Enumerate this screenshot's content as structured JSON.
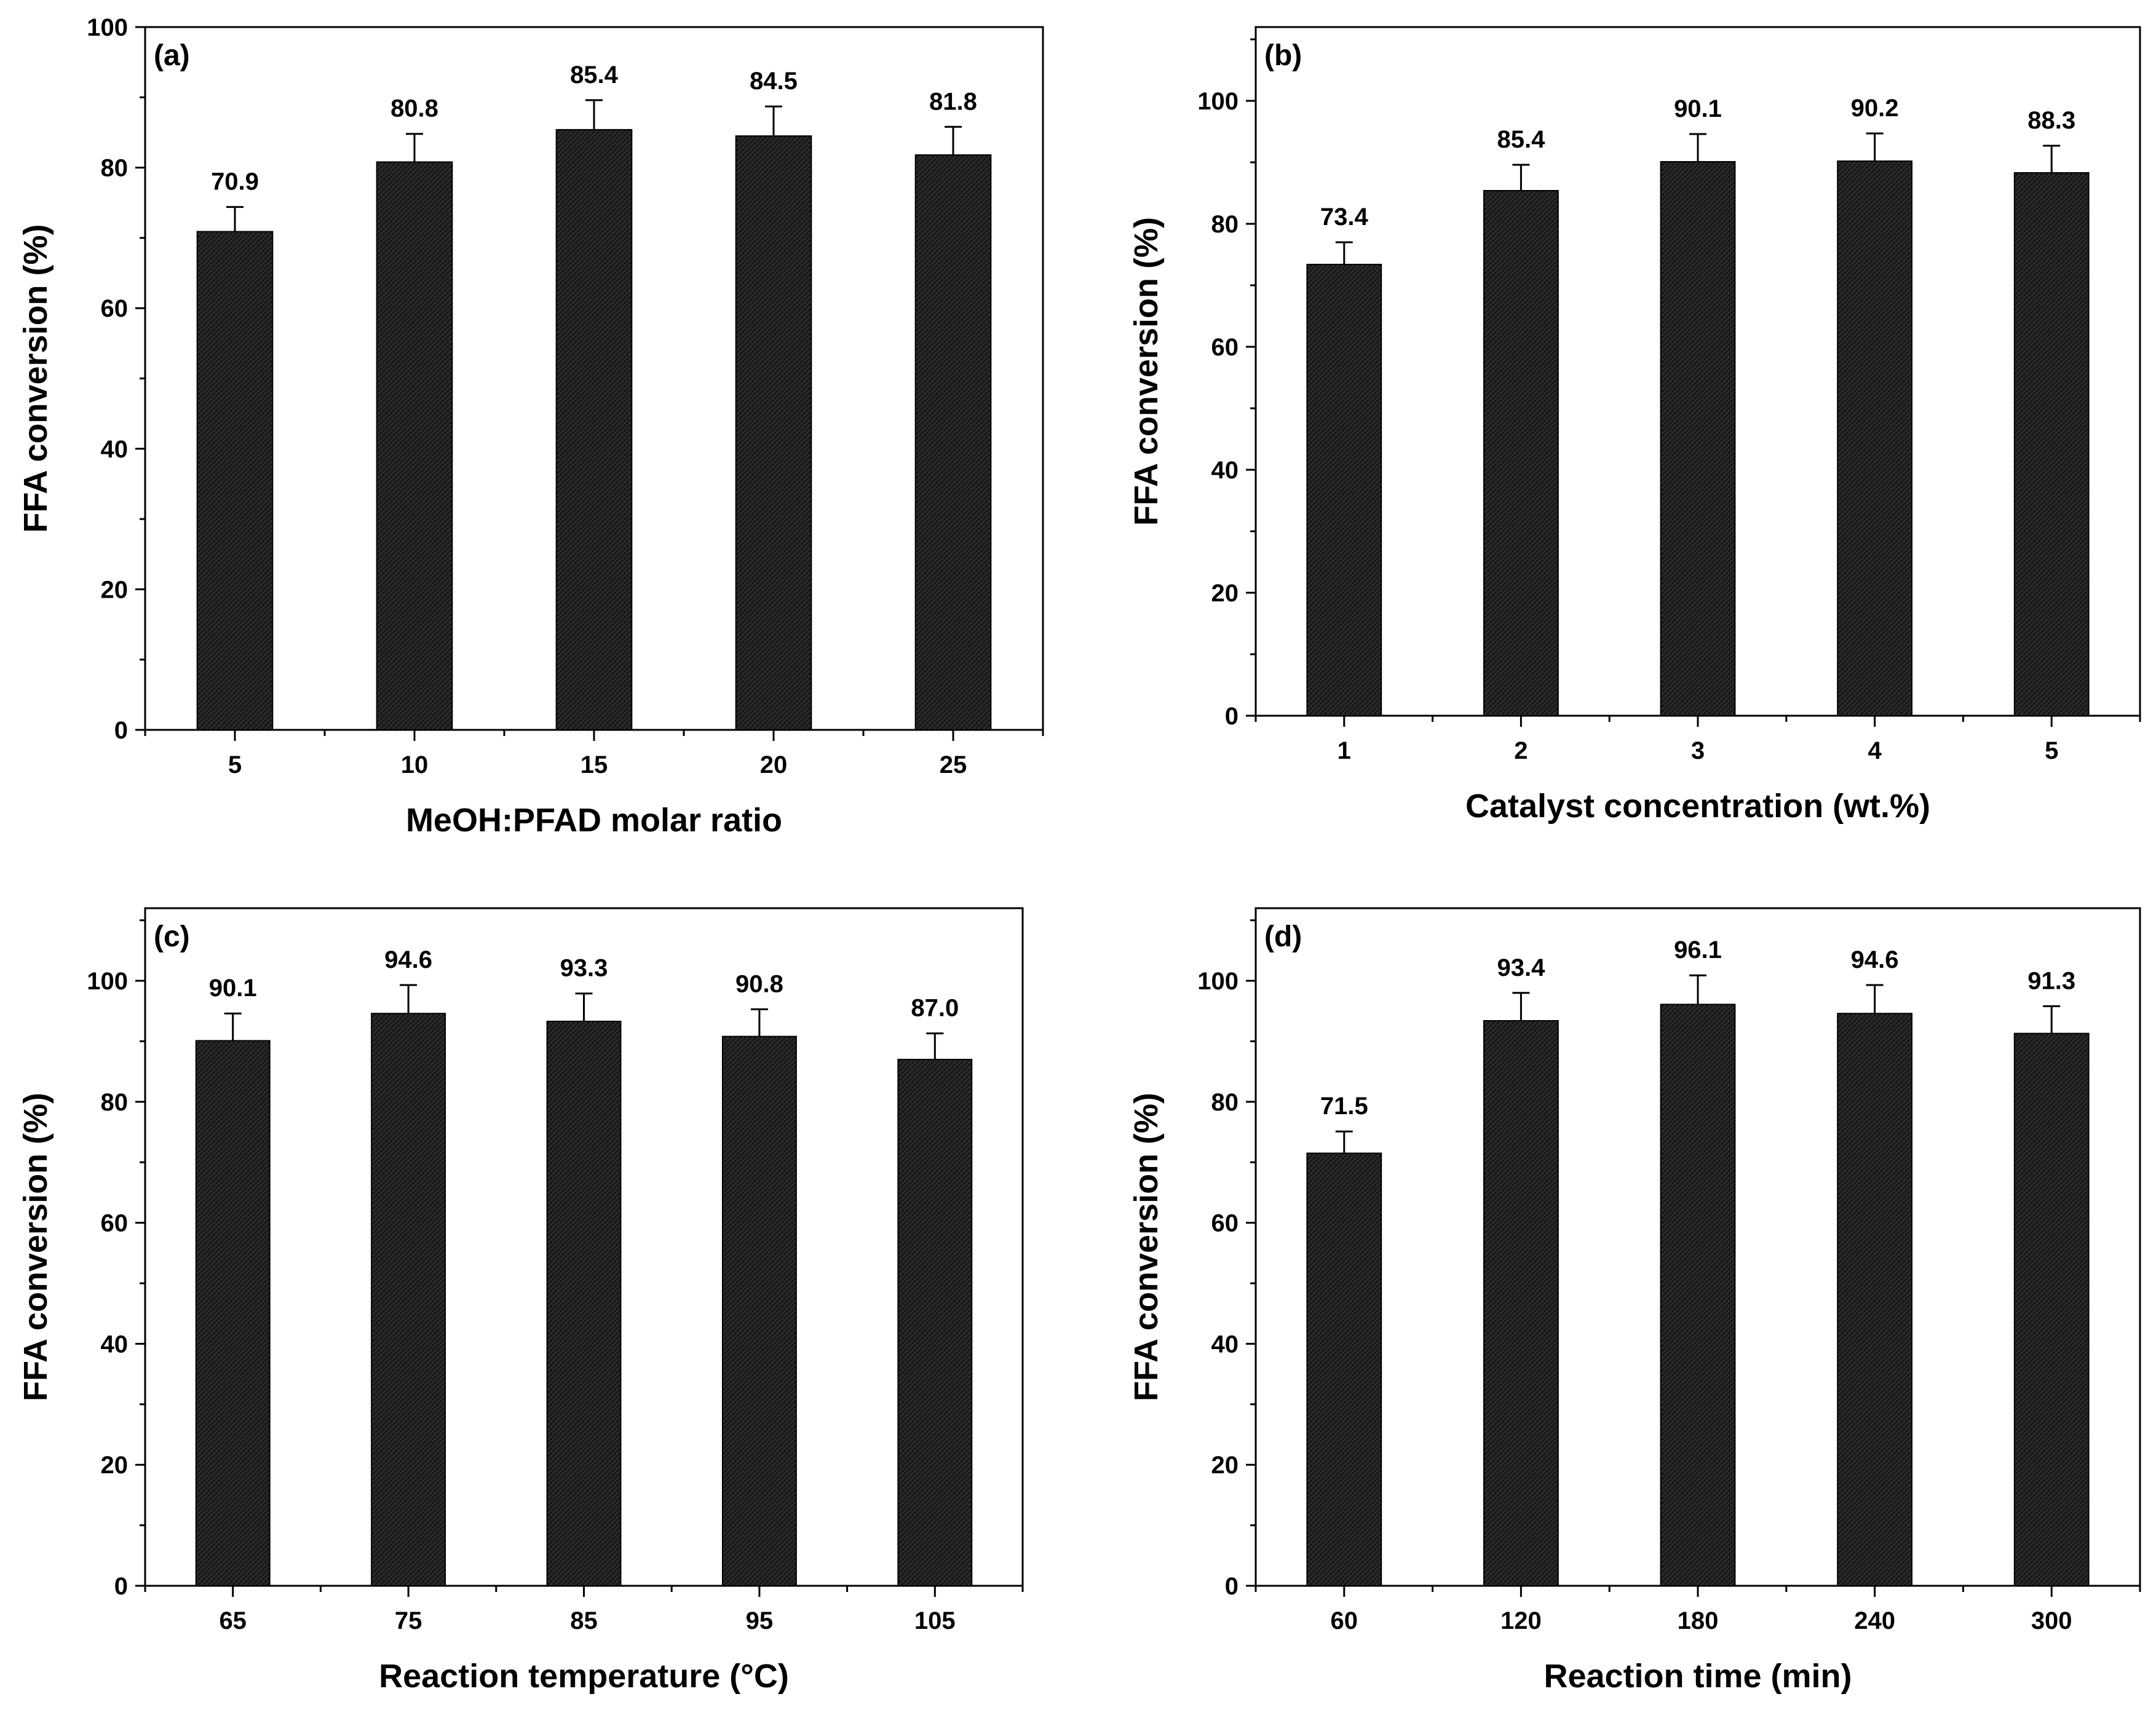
{
  "figure": {
    "background": "#ffffff",
    "bar_color": "#1a1a1a",
    "axis_color": "#000000"
  },
  "chart_data": [
    {
      "type": "bar",
      "panel": "(a)",
      "categories": [
        "5",
        "10",
        "15",
        "20",
        "25"
      ],
      "values": [
        70.9,
        80.8,
        85.4,
        84.5,
        81.8
      ],
      "error": [
        3.5,
        4.0,
        4.2,
        4.2,
        4.0
      ],
      "data_labels": [
        "70.9",
        "80.8",
        "85.4",
        "84.5",
        "81.8"
      ],
      "xlabel": "MeOH:PFAD molar ratio",
      "ylabel": "FFA conversion (%)",
      "ylim": [
        0,
        100
      ],
      "yticks": [
        "0",
        "20",
        "40",
        "60",
        "80",
        "100"
      ],
      "grid": false
    },
    {
      "type": "bar",
      "panel": "(b)",
      "categories": [
        "1",
        "2",
        "3",
        "4",
        "5"
      ],
      "values": [
        73.4,
        85.4,
        90.1,
        90.2,
        88.3
      ],
      "error": [
        3.6,
        4.2,
        4.5,
        4.5,
        4.4
      ],
      "data_labels": [
        "73.4",
        "85.4",
        "90.1",
        "90.2",
        "88.3"
      ],
      "xlabel": "Catalyst concentration (wt.%)",
      "ylabel": "FFA conversion (%)",
      "ylim": [
        0,
        112
      ],
      "yticks": [
        "0",
        "20",
        "40",
        "60",
        "80",
        "100"
      ],
      "grid": false
    },
    {
      "type": "bar",
      "panel": "(c)",
      "categories": [
        "65",
        "75",
        "85",
        "95",
        "105"
      ],
      "values": [
        90.1,
        94.6,
        93.3,
        90.8,
        87.0
      ],
      "error": [
        4.5,
        4.7,
        4.6,
        4.5,
        4.3
      ],
      "data_labels": [
        "90.1",
        "94.6",
        "93.3",
        "90.8",
        "87.0"
      ],
      "xlabel": "Reaction temperature (°C)",
      "ylabel": "FFA conversion (%)",
      "ylim": [
        0,
        112
      ],
      "yticks": [
        "0",
        "20",
        "40",
        "60",
        "80",
        "100"
      ],
      "grid": false
    },
    {
      "type": "bar",
      "panel": "(d)",
      "categories": [
        "60",
        "120",
        "180",
        "240",
        "300"
      ],
      "values": [
        71.5,
        93.4,
        96.1,
        94.6,
        91.3
      ],
      "error": [
        3.6,
        4.6,
        4.8,
        4.7,
        4.5
      ],
      "data_labels": [
        "71.5",
        "93.4",
        "96.1",
        "94.6",
        "91.3"
      ],
      "xlabel": "Reaction time (min)",
      "ylabel": "FFA conversion (%)",
      "ylim": [
        0,
        112
      ],
      "yticks": [
        "0",
        "20",
        "40",
        "60",
        "80",
        "100"
      ],
      "grid": false
    }
  ]
}
